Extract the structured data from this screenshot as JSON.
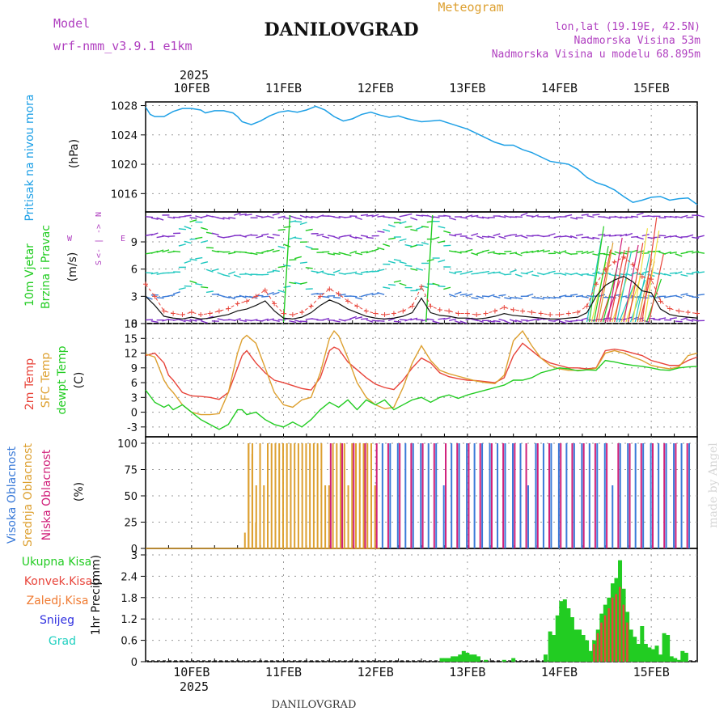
{
  "header": {
    "model_label": "Model",
    "model_name": "wrf-nmm_v3.9.1 e1km",
    "title": "DANILOVGRAD",
    "subtitle": "Meteogram",
    "lonlat": "lon,lat (19.19E, 42.5N)",
    "elevation": "Nadmorska Visina 53m",
    "model_elevation": "Nadmorska Visina u modelu 68.895m",
    "footer_title": "DANILOVGRAD",
    "watermark": "made by Angel"
  },
  "colors": {
    "pressure": "#1ea0e6",
    "temp2m": "#e8443a",
    "sfc_temp": "#dda030",
    "dewpoint": "#22cc22",
    "high_cloud": "#3a7ad8",
    "mid_cloud": "#dda030",
    "low_cloud": "#d0207a",
    "total_precip": "#22cc22",
    "conv_precip": "#e8443a",
    "frz_precip": "#f07a30",
    "snow": "#3030e0",
    "graupel": "#20d0c0",
    "label_blue": "#1ea0e6",
    "label_green": "#22cc22",
    "label_purple": "#b040c0",
    "label_orange": "#dda030"
  },
  "x_axis": {
    "year": "2025",
    "day_labels": [
      "10FEB",
      "11FEB",
      "12FEB",
      "13FEB",
      "14FEB",
      "15FEB"
    ],
    "range_days": [
      -0.5,
      5.5
    ]
  },
  "chart_data": [
    {
      "id": "pressure",
      "type": "line",
      "ylabel_name": "Pritisak na nivou mora",
      "ylabel_unit": "(hPa)",
      "ylim": [
        1013.5,
        1028.5
      ],
      "yticks": [
        1016,
        1020,
        1024,
        1028
      ],
      "grid": true,
      "x": [
        -0.5,
        -0.45,
        -0.4,
        -0.3,
        -0.2,
        -0.1,
        0,
        0.1,
        0.15,
        0.25,
        0.35,
        0.45,
        0.5,
        0.55,
        0.65,
        0.75,
        0.85,
        0.95,
        1.05,
        1.15,
        1.25,
        1.35,
        1.45,
        1.55,
        1.65,
        1.75,
        1.85,
        1.95,
        2.05,
        2.15,
        2.25,
        2.35,
        2.5,
        2.6,
        2.7,
        2.8,
        2.9,
        3,
        3.1,
        3.2,
        3.3,
        3.4,
        3.5,
        3.6,
        3.7,
        3.8,
        3.9,
        4,
        4.1,
        4.2,
        4.3,
        4.4,
        4.5,
        4.6,
        4.7,
        4.8,
        4.9,
        5,
        5.1,
        5.2,
        5.3,
        5.4,
        5.5
      ],
      "values": [
        1027.8,
        1026.8,
        1026.5,
        1026.5,
        1027.2,
        1027.6,
        1027.6,
        1027.4,
        1027,
        1027.3,
        1027.3,
        1027.0,
        1026.5,
        1025.8,
        1025.4,
        1025.9,
        1026.6,
        1027.1,
        1027.3,
        1027.1,
        1027.4,
        1027.9,
        1027.4,
        1026.5,
        1025.9,
        1026.2,
        1026.8,
        1027.1,
        1026.7,
        1026.4,
        1026.6,
        1026.2,
        1025.8,
        1025.9,
        1026.0,
        1025.6,
        1025.2,
        1024.8,
        1024.2,
        1023.6,
        1023.0,
        1022.6,
        1022.6,
        1022.0,
        1021.6,
        1021.0,
        1020.4,
        1020.2,
        1020.0,
        1019.3,
        1018.2,
        1017.5,
        1017.1,
        1016.5,
        1015.6,
        1014.8,
        1015.1,
        1015.5,
        1015.6,
        1015.1,
        1015.3,
        1015.4,
        1014.5
      ]
    },
    {
      "id": "wind",
      "type": "scatter",
      "ylabel_name": "10m Vjetar",
      "ylabel_name2": "Brzina i Pravac",
      "ylabel_unit": "(m/s)",
      "compass_left": "W",
      "compass_right": "E",
      "compass_top": "N",
      "compass_bottom": "S",
      "compass_line": "<- | ->",
      "ylim": [
        0,
        12.3
      ],
      "yticks": [
        0,
        3,
        6,
        9
      ],
      "grid": true,
      "x": [
        -0.5,
        -0.4,
        -0.3,
        -0.2,
        -0.1,
        0,
        0.1,
        0.2,
        0.3,
        0.4,
        0.5,
        0.6,
        0.7,
        0.8,
        0.9,
        1,
        1.1,
        1.2,
        1.3,
        1.4,
        1.5,
        1.6,
        1.7,
        1.8,
        1.9,
        2,
        2.1,
        2.2,
        2.3,
        2.4,
        2.5,
        2.6,
        2.7,
        2.8,
        2.9,
        3,
        3.1,
        3.2,
        3.3,
        3.4,
        3.5,
        3.6,
        3.7,
        3.8,
        3.9,
        4,
        4.1,
        4.2,
        4.3,
        4.4,
        4.5,
        4.6,
        4.7,
        4.8,
        4.9,
        5,
        5.1,
        5.2,
        5.3,
        5.4,
        5.5
      ],
      "values": [
        3.0,
        2.0,
        0.8,
        0.6,
        0.5,
        0.7,
        0.5,
        0.6,
        0.8,
        1.0,
        1.4,
        1.6,
        2.0,
        2.5,
        1.4,
        0.6,
        0.5,
        0.7,
        1.2,
        2.0,
        2.6,
        2.2,
        1.6,
        1.2,
        0.8,
        0.6,
        0.5,
        0.6,
        0.8,
        1.2,
        2.8,
        1.2,
        0.9,
        0.8,
        0.6,
        0.6,
        0.5,
        0.6,
        0.8,
        1.1,
        0.9,
        0.8,
        0.7,
        0.6,
        0.5,
        0.5,
        0.6,
        0.7,
        1.2,
        3.0,
        4.2,
        4.8,
        5.2,
        4.6,
        3.6,
        3.4,
        1.6,
        1.0,
        0.8,
        0.7,
        0.6
      ]
    },
    {
      "id": "temperature",
      "type": "line",
      "ylabel_name": "2m Temp",
      "ylabel_name2": "SFC Temp",
      "ylabel_name3": "dewpt Temp",
      "ylabel_unit": "(C)",
      "ylim": [
        -5,
        18
      ],
      "yticks": [
        -3,
        0,
        3,
        6,
        9,
        12,
        15,
        18
      ],
      "grid": true,
      "x": [
        -0.5,
        -0.4,
        -0.3,
        -0.25,
        -0.2,
        -0.1,
        0,
        0.1,
        0.2,
        0.3,
        0.4,
        0.5,
        0.55,
        0.6,
        0.7,
        0.8,
        0.9,
        1,
        1.1,
        1.2,
        1.3,
        1.4,
        1.5,
        1.55,
        1.6,
        1.7,
        1.8,
        1.9,
        2,
        2.1,
        2.2,
        2.3,
        2.4,
        2.5,
        2.6,
        2.7,
        2.8,
        2.9,
        3,
        3.1,
        3.2,
        3.3,
        3.4,
        3.5,
        3.6,
        3.7,
        3.8,
        3.9,
        4,
        4.1,
        4.2,
        4.3,
        4.4,
        4.5,
        4.6,
        4.7,
        4.8,
        4.9,
        5,
        5.1,
        5.2,
        5.3,
        5.4,
        5.5
      ],
      "series": [
        {
          "name": "2m Temp",
          "color": "#e8443a",
          "values": [
            11.5,
            12,
            10,
            7.5,
            6.5,
            4,
            3.3,
            3.2,
            3,
            2.6,
            4,
            9,
            11.5,
            12.5,
            10,
            8,
            6.5,
            6,
            5.4,
            4.8,
            4.5,
            7,
            12.5,
            13.2,
            12.8,
            10.2,
            8.6,
            7,
            5.7,
            5,
            4.6,
            6.5,
            9,
            11,
            10,
            8,
            7.2,
            6.8,
            6.5,
            6.4,
            6.2,
            6,
            7,
            11.5,
            14,
            12.5,
            11,
            10,
            9.5,
            9,
            9,
            8.8,
            9,
            12.5,
            12.8,
            12.5,
            12,
            11.5,
            10.5,
            10,
            9.5,
            9.5,
            10.5,
            11.2
          ]
        },
        {
          "name": "SFC Temp",
          "color": "#dda030",
          "values": [
            11.8,
            11.2,
            6.5,
            5,
            4,
            1.5,
            0,
            -0.5,
            -0.5,
            -0.3,
            4,
            12,
            14.8,
            15.6,
            14,
            9,
            4,
            1.5,
            1,
            2.5,
            3,
            8,
            15,
            16.5,
            15.5,
            11,
            6,
            3,
            1.5,
            0.7,
            1,
            5,
            10,
            13.5,
            10.5,
            8.5,
            7.8,
            7.3,
            6.8,
            6.3,
            6,
            5.8,
            7.5,
            14.5,
            16.5,
            13.5,
            11,
            9.5,
            8.8,
            8.5,
            8.5,
            8.6,
            8.9,
            12,
            12.5,
            12,
            11.2,
            10.5,
            9.5,
            9.1,
            8.8,
            9.2,
            11.5,
            12
          ]
        },
        {
          "name": "dewpt Temp",
          "color": "#22cc22",
          "values": [
            4.5,
            2,
            1,
            1.5,
            0.5,
            1.5,
            0,
            -1.5,
            -2.5,
            -3.5,
            -2.5,
            0.5,
            0.5,
            -0.5,
            0,
            -1.5,
            -2.5,
            -3,
            -2,
            -3,
            -1.5,
            0.5,
            2,
            1.5,
            1,
            2.5,
            0.5,
            2.5,
            1.5,
            2.5,
            0.5,
            1.5,
            2.5,
            3,
            2,
            3,
            3.5,
            2.8,
            3.5,
            4,
            4.5,
            5,
            5.5,
            6.5,
            6.5,
            7,
            8,
            8.5,
            9,
            8.8,
            8.4,
            8.6,
            8.5,
            10.5,
            10.2,
            9.8,
            9.5,
            9.3,
            9,
            8.6,
            8.5,
            9,
            9.2,
            9.3
          ]
        }
      ]
    },
    {
      "id": "clouds",
      "type": "bar",
      "ylabel_name": "Visoka Oblacnost",
      "ylabel_name2": "Srednja Oblacnost",
      "ylabel_name3": "Niska Oblacnost",
      "ylabel_unit": "(%)",
      "ylim": [
        0,
        100
      ],
      "yticks": [
        0,
        25,
        50,
        75,
        100
      ],
      "grid": true,
      "bar_step_days": 0.0417,
      "series": [
        {
          "name": "Srednja Oblacnost",
          "color": "#dda030",
          "start": 0.62,
          "end": 2.0,
          "value": 100,
          "gaps": [
            0.72,
            0.78,
            1.46,
            1.5,
            1.72,
            1.98
          ]
        },
        {
          "name": "Niska Oblacnost",
          "color": "#d0207a",
          "start": 1.5,
          "end": 5.45,
          "value": 100,
          "every": 3
        },
        {
          "name": "Visoka Oblacnost",
          "color": "#3a7ad8",
          "start": 2.05,
          "end": 5.45,
          "value": 100,
          "every": 2
        }
      ]
    },
    {
      "id": "precip",
      "type": "bar",
      "ylabel_name": "1hr Precip",
      "ylabel_unit": "(mm)",
      "legend": [
        "Ukupna Kisa",
        "Konvek.Kisa",
        "Zaledj.Kisa",
        "Snijeg",
        "Grad"
      ],
      "ylim": [
        0,
        3
      ],
      "yticks": [
        0,
        0.6,
        1.2,
        1.8,
        2.4,
        3
      ],
      "grid": true,
      "x": [
        2.72,
        2.76,
        2.8,
        2.84,
        2.88,
        2.92,
        2.96,
        3.0,
        3.04,
        3.08,
        3.12,
        3.2,
        3.4,
        3.5,
        3.85,
        3.9,
        3.94,
        3.98,
        4.02,
        4.06,
        4.1,
        4.14,
        4.18,
        4.22,
        4.26,
        4.3,
        4.34,
        4.38,
        4.42,
        4.46,
        4.5,
        4.54,
        4.58,
        4.62,
        4.66,
        4.7,
        4.74,
        4.78,
        4.82,
        4.86,
        4.9,
        4.94,
        4.98,
        5.02,
        5.06,
        5.1,
        5.14,
        5.18,
        5.22,
        5.26,
        5.3,
        5.34,
        5.38
      ],
      "values": [
        0.1,
        0.1,
        0.1,
        0.15,
        0.15,
        0.2,
        0.3,
        0.25,
        0.2,
        0.2,
        0.15,
        0.05,
        0.05,
        0.1,
        0.2,
        0.85,
        0.75,
        1.3,
        1.7,
        1.75,
        1.5,
        1.25,
        0.9,
        0.9,
        0.75,
        0.6,
        0.3,
        0.6,
        0.9,
        1.35,
        1.6,
        1.8,
        2.2,
        2.35,
        2.85,
        2.05,
        1.4,
        0.9,
        0.7,
        0.5,
        1.0,
        0.5,
        0.4,
        0.35,
        0.45,
        0.2,
        0.8,
        0.75,
        0.15,
        0.1,
        0.05,
        0.3,
        0.25
      ],
      "convective": [
        0,
        0,
        0,
        0,
        0,
        0,
        0,
        0,
        0,
        0,
        0,
        0,
        0,
        0,
        0,
        0,
        0,
        0,
        0,
        0,
        0,
        0,
        0,
        0,
        0,
        0,
        0,
        0.5,
        0.8,
        1.1,
        1.3,
        1.5,
        1.8,
        1.9,
        2.1,
        1.6,
        1.1,
        0,
        0,
        0,
        0,
        0,
        0,
        0,
        0,
        0,
        0,
        0,
        0,
        0,
        0,
        0,
        0
      ]
    }
  ]
}
